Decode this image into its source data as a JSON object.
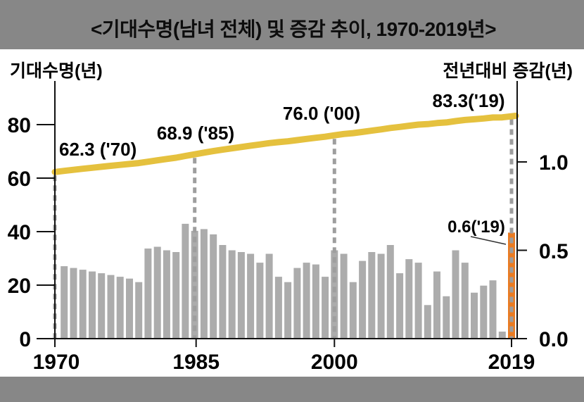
{
  "title": "<기대수명(남녀 전체) 및 증감 추이, 1970-2019년>",
  "left_axis": {
    "header": "기대수명(년)",
    "ticks": [
      0,
      20,
      40,
      60,
      80
    ]
  },
  "right_axis": {
    "header": "전년대비 증감(년)",
    "ticks": [
      "0.0",
      "0.5",
      "1.0"
    ]
  },
  "x_axis": {
    "tick_labels": [
      "1970",
      "1985",
      "2000",
      "2019"
    ]
  },
  "annotations": {
    "line_labels": [
      {
        "text": "62.3 ('70)",
        "year": 1970,
        "value": 62.3
      },
      {
        "text": "68.9 ('85)",
        "year": 1985,
        "value": 68.9
      },
      {
        "text": "76.0 ('00)",
        "year": 2000,
        "value": 76.0
      },
      {
        "text": "83.3('19)",
        "year": 2019,
        "value": 83.3
      }
    ],
    "bar_label": {
      "text": "0.6('19)",
      "year": 2019,
      "value": 0.6
    }
  },
  "colors": {
    "band_gray": "#878787",
    "bar_gray": "#ACACAC",
    "bar_highlight_orange": "#EA7B22",
    "line_yellow": "#E5C13E",
    "guide_dash_gray": "#9E9E9E",
    "axis_black": "#111111"
  },
  "chart_data": {
    "type": [
      "line",
      "bar"
    ],
    "title": "기대수명(남녀 전체) 및 증감 추이, 1970-2019년",
    "x_years": [
      1970,
      1971,
      1972,
      1973,
      1974,
      1975,
      1976,
      1977,
      1978,
      1979,
      1980,
      1981,
      1982,
      1983,
      1984,
      1985,
      1986,
      1987,
      1988,
      1989,
      1990,
      1991,
      1992,
      1993,
      1994,
      1995,
      1996,
      1997,
      1998,
      1999,
      2000,
      2001,
      2002,
      2003,
      2004,
      2005,
      2006,
      2007,
      2008,
      2009,
      2010,
      2011,
      2012,
      2013,
      2014,
      2015,
      2016,
      2017,
      2018,
      2019
    ],
    "series": [
      {
        "name": "기대수명(년)",
        "type": "line",
        "axis": "left",
        "values": [
          62.3,
          62.71,
          63.11,
          63.5,
          63.88,
          64.25,
          64.61,
          64.96,
          65.3,
          65.62,
          66.13,
          66.65,
          67.15,
          67.64,
          68.29,
          68.9,
          69.52,
          70.11,
          70.64,
          71.14,
          71.64,
          72.13,
          72.58,
          73.07,
          73.44,
          73.77,
          74.22,
          74.66,
          75.09,
          75.48,
          75.99,
          76.49,
          76.81,
          77.25,
          77.74,
          78.22,
          78.75,
          79.12,
          79.57,
          80.0,
          80.19,
          80.57,
          80.81,
          81.31,
          81.74,
          82.0,
          82.3,
          82.66,
          82.7,
          83.3
        ]
      },
      {
        "name": "전년대비 증감(년)",
        "type": "bar",
        "axis": "right",
        "values": [
          null,
          0.41,
          0.4,
          0.39,
          0.38,
          0.37,
          0.36,
          0.35,
          0.34,
          0.32,
          0.51,
          0.52,
          0.5,
          0.49,
          0.65,
          0.61,
          0.62,
          0.59,
          0.53,
          0.5,
          0.49,
          0.48,
          0.43,
          0.48,
          0.35,
          0.32,
          0.4,
          0.43,
          0.42,
          0.35,
          0.5,
          0.48,
          0.32,
          0.44,
          0.49,
          0.48,
          0.53,
          0.37,
          0.45,
          0.43,
          0.19,
          0.38,
          0.24,
          0.5,
          0.43,
          0.26,
          0.3,
          0.33,
          0.04,
          0.6
        ],
        "highlight_year": 2019
      }
    ],
    "guide_years": [
      1970,
      1985,
      2000,
      2019
    ],
    "left_ylim": [
      0,
      96.3
    ],
    "right_ylim": [
      0,
      1.46
    ],
    "grid": false,
    "legend_position": "none"
  }
}
